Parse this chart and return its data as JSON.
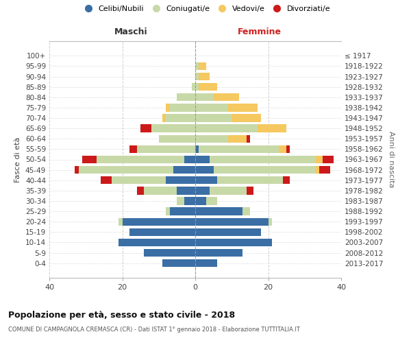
{
  "age_groups": [
    "100+",
    "95-99",
    "90-94",
    "85-89",
    "80-84",
    "75-79",
    "70-74",
    "65-69",
    "60-64",
    "55-59",
    "50-54",
    "45-49",
    "40-44",
    "35-39",
    "30-34",
    "25-29",
    "20-24",
    "15-19",
    "10-14",
    "5-9",
    "0-4"
  ],
  "birth_years": [
    "≤ 1917",
    "1918-1922",
    "1923-1927",
    "1928-1932",
    "1933-1937",
    "1938-1942",
    "1943-1947",
    "1948-1952",
    "1953-1957",
    "1958-1962",
    "1963-1967",
    "1968-1972",
    "1973-1977",
    "1978-1982",
    "1983-1987",
    "1988-1992",
    "1993-1997",
    "1998-2002",
    "2003-2007",
    "2008-2012",
    "2013-2017"
  ],
  "maschi": {
    "celibi": [
      0,
      0,
      0,
      0,
      0,
      0,
      0,
      0,
      0,
      0,
      3,
      6,
      8,
      5,
      3,
      7,
      20,
      18,
      21,
      14,
      9
    ],
    "coniugati": [
      0,
      0,
      0,
      1,
      5,
      7,
      8,
      12,
      10,
      16,
      24,
      26,
      15,
      9,
      2,
      1,
      1,
      0,
      0,
      0,
      0
    ],
    "vedovi": [
      0,
      0,
      0,
      0,
      0,
      1,
      1,
      0,
      0,
      0,
      0,
      0,
      0,
      0,
      0,
      0,
      0,
      0,
      0,
      0,
      0
    ],
    "divorziati": [
      0,
      0,
      0,
      0,
      0,
      0,
      0,
      3,
      0,
      2,
      4,
      1,
      3,
      2,
      0,
      0,
      0,
      0,
      0,
      0,
      0
    ]
  },
  "femmine": {
    "nubili": [
      0,
      0,
      0,
      0,
      0,
      0,
      0,
      0,
      0,
      1,
      4,
      5,
      6,
      4,
      3,
      13,
      20,
      18,
      21,
      13,
      6
    ],
    "coniugate": [
      0,
      1,
      1,
      1,
      5,
      9,
      10,
      17,
      9,
      22,
      29,
      28,
      18,
      10,
      3,
      2,
      1,
      0,
      0,
      0,
      0
    ],
    "vedove": [
      0,
      2,
      3,
      5,
      7,
      8,
      8,
      8,
      5,
      2,
      2,
      1,
      0,
      0,
      0,
      0,
      0,
      0,
      0,
      0,
      0
    ],
    "divorziate": [
      0,
      0,
      0,
      0,
      0,
      0,
      0,
      0,
      1,
      1,
      3,
      3,
      2,
      2,
      0,
      0,
      0,
      0,
      0,
      0,
      0
    ]
  },
  "colors": {
    "celibi_nubili": "#3a6ea5",
    "coniugati_e": "#c8d9a8",
    "vedovi_e": "#f5c860",
    "divorziati_e": "#cc1a1a"
  },
  "xlim": 40,
  "title": "Popolazione per età, sesso e stato civile - 2018",
  "subtitle": "COMUNE DI CAMPAGNOLA CREMASCA (CR) - Dati ISTAT 1° gennaio 2018 - Elaborazione TUTTITALIA.IT",
  "ylabel_left": "Fasce di età",
  "ylabel_right": "Anni di nascita",
  "header_maschi": "Maschi",
  "header_femmine": "Femmine",
  "legend_labels": [
    "Celibi/Nubili",
    "Coniugati/e",
    "Vedovi/e",
    "Divorziati/e"
  ]
}
